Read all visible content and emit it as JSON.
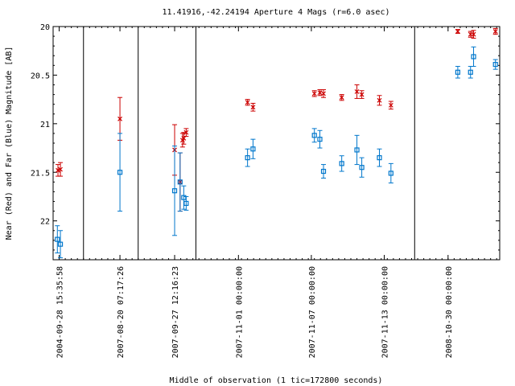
{
  "chart_data": {
    "type": "scatter",
    "title": "11.41916,-42.24194   Aperture 4 Mags (r=6.0 asec)",
    "xlabel": "Middle of observation (1 tic=172800 seconds)",
    "ylabel": "Near (Red) and Far (Blue) Magnitude [AB]",
    "x_unit": "tic",
    "xlim": [
      0,
      73.5
    ],
    "ylim": [
      22.4,
      20.0
    ],
    "y_axis_inverted": true,
    "y_ticks": [
      "20",
      "20.5",
      "21",
      "21.5",
      "22"
    ],
    "y_tick_values": [
      20,
      20.5,
      21,
      21.5,
      22
    ],
    "x_ticks": [
      {
        "x": 1,
        "label": "2004-09-28 15:35:58"
      },
      {
        "x": 11,
        "label": "2007-08-20 07:17:26"
      },
      {
        "x": 20,
        "label": "2007-09-27 12:16:23"
      },
      {
        "x": 30.5,
        "label": "2007-11-01 00:00:00"
      },
      {
        "x": 42.5,
        "label": "2007-11-07 00:00:00"
      },
      {
        "x": 54.5,
        "label": "2007-11-13 00:00:00"
      },
      {
        "x": 65,
        "label": "2008-10-30 00:00:00"
      }
    ],
    "segment_dividers": [
      5,
      14,
      23.5,
      59.5
    ],
    "grid": false,
    "legend": "none",
    "series": [
      {
        "color": "#cc0000",
        "marker": "x",
        "points": [
          {
            "x": 0.8,
            "y": 21.48,
            "err": 0.06
          },
          {
            "x": 1.2,
            "y": 21.47,
            "err": 0.07
          },
          {
            "x": 11.0,
            "y": 20.95,
            "err": 0.22
          },
          {
            "x": 20.0,
            "y": 21.27,
            "err": 0.26
          },
          {
            "x": 20.9,
            "y": 21.6,
            "err": 0.3
          },
          {
            "x": 21.3,
            "y": 21.17,
            "err": 0.07
          },
          {
            "x": 21.5,
            "y": 21.15,
            "err": 0.06
          },
          {
            "x": 21.9,
            "y": 21.09,
            "err": 0.04
          },
          {
            "x": 32.0,
            "y": 20.78,
            "err": 0.03
          },
          {
            "x": 32.9,
            "y": 20.83,
            "err": 0.04
          },
          {
            "x": 43.0,
            "y": 20.69,
            "err": 0.03
          },
          {
            "x": 43.9,
            "y": 20.68,
            "err": 0.03
          },
          {
            "x": 44.5,
            "y": 20.69,
            "err": 0.04
          },
          {
            "x": 47.5,
            "y": 20.73,
            "err": 0.03
          },
          {
            "x": 50.0,
            "y": 20.67,
            "err": 0.07
          },
          {
            "x": 50.8,
            "y": 20.7,
            "err": 0.04
          },
          {
            "x": 53.7,
            "y": 20.76,
            "err": 0.05
          },
          {
            "x": 55.6,
            "y": 20.81,
            "err": 0.04
          },
          {
            "x": 66.6,
            "y": 20.05,
            "err": 0.02
          },
          {
            "x": 68.7,
            "y": 20.08,
            "err": 0.03
          },
          {
            "x": 69.2,
            "y": 20.08,
            "err": 0.04
          },
          {
            "x": 72.8,
            "y": 20.05,
            "err": 0.03
          }
        ]
      },
      {
        "color": "#0077cc",
        "marker": "square",
        "points": [
          {
            "x": 0.7,
            "y": 22.19,
            "err": 0.14
          },
          {
            "x": 1.2,
            "y": 22.24,
            "err": 0.14
          },
          {
            "x": 11.0,
            "y": 21.5,
            "err": 0.4
          },
          {
            "x": 20.0,
            "y": 21.69,
            "err": 0.46
          },
          {
            "x": 20.9,
            "y": 21.6,
            "err": 0.3
          },
          {
            "x": 21.5,
            "y": 21.76,
            "err": 0.12
          },
          {
            "x": 21.9,
            "y": 21.82,
            "err": 0.07
          },
          {
            "x": 32.0,
            "y": 21.35,
            "err": 0.09
          },
          {
            "x": 32.9,
            "y": 21.26,
            "err": 0.1
          },
          {
            "x": 43.0,
            "y": 21.12,
            "err": 0.07
          },
          {
            "x": 43.9,
            "y": 21.16,
            "err": 0.09
          },
          {
            "x": 44.5,
            "y": 21.49,
            "err": 0.07
          },
          {
            "x": 47.5,
            "y": 21.41,
            "err": 0.08
          },
          {
            "x": 50.0,
            "y": 21.27,
            "err": 0.15
          },
          {
            "x": 50.8,
            "y": 21.45,
            "err": 0.1
          },
          {
            "x": 53.7,
            "y": 21.35,
            "err": 0.09
          },
          {
            "x": 55.6,
            "y": 21.51,
            "err": 0.1
          },
          {
            "x": 66.6,
            "y": 20.47,
            "err": 0.06
          },
          {
            "x": 68.7,
            "y": 20.47,
            "err": 0.06
          },
          {
            "x": 69.2,
            "y": 20.31,
            "err": 0.1
          },
          {
            "x": 72.8,
            "y": 20.39,
            "err": 0.05
          }
        ]
      }
    ]
  }
}
